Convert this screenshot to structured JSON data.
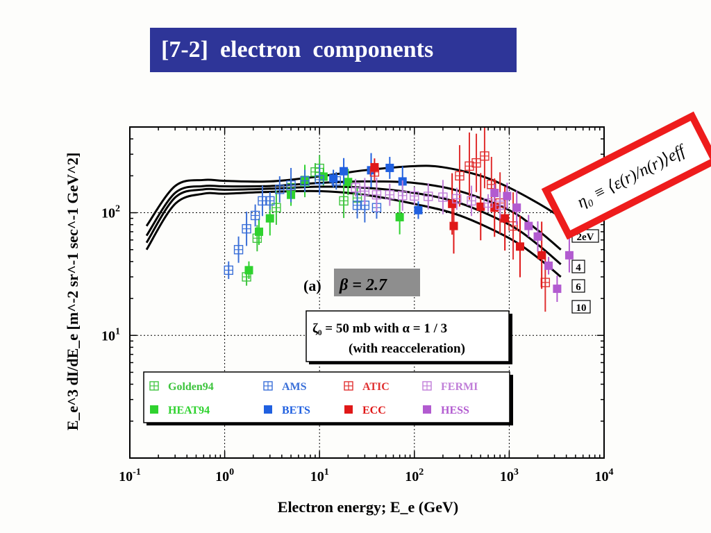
{
  "slide": {
    "title": "[7-2]  electron  components"
  },
  "annotation": {
    "formula_label": "η₀ ≡ ⟨ε(r)/n(r)⟩eff"
  },
  "chart_data": {
    "type": "scatter",
    "title": "",
    "xlabel": "Electron energy;  E_e (GeV)",
    "ylabel": "E_e^3 dI/dE_e [m^-2 sr^-1 sec^-1 GeV^2]",
    "x_scale": "log",
    "y_scale": "log",
    "xlim": [
      0.1,
      10000
    ],
    "ylim": [
      1,
      500
    ],
    "x_ticks": [
      "10-1",
      "100",
      "101",
      "102",
      "103",
      "104"
    ],
    "y_ticks": [
      "101",
      "102"
    ],
    "grid": "dotted at decades",
    "panel_label": "(a)",
    "beta_label": "β  =  2.7",
    "param_box": [
      "ζ₀ = 50 mb  with  α = 1 / 3",
      "(with reacceleration)"
    ],
    "curve_labels": [
      "2eV",
      "4",
      "6",
      "10"
    ],
    "model_curves": [
      {
        "name": "2eV",
        "points": [
          [
            0.15,
            78
          ],
          [
            0.3,
            165
          ],
          [
            0.6,
            185
          ],
          [
            1,
            182
          ],
          [
            3,
            180
          ],
          [
            10,
            198
          ],
          [
            30,
            222
          ],
          [
            100,
            240
          ],
          [
            200,
            235
          ],
          [
            500,
            200
          ],
          [
            1000,
            160
          ],
          [
            2000,
            120
          ],
          [
            3500,
            92
          ]
        ]
      },
      {
        "name": "4",
        "points": [
          [
            0.15,
            65
          ],
          [
            0.3,
            145
          ],
          [
            0.6,
            165
          ],
          [
            1,
            164
          ],
          [
            3,
            165
          ],
          [
            10,
            175
          ],
          [
            30,
            180
          ],
          [
            100,
            175
          ],
          [
            300,
            150
          ],
          [
            1000,
            105
          ],
          [
            2000,
            72
          ],
          [
            3500,
            50
          ]
        ]
      },
      {
        "name": "6",
        "points": [
          [
            0.15,
            57
          ],
          [
            0.3,
            133
          ],
          [
            0.6,
            155
          ],
          [
            1,
            154
          ],
          [
            3,
            157
          ],
          [
            10,
            163
          ],
          [
            30,
            160
          ],
          [
            100,
            145
          ],
          [
            300,
            120
          ],
          [
            1000,
            80
          ],
          [
            2000,
            55
          ],
          [
            3500,
            38
          ]
        ]
      },
      {
        "name": "10",
        "points": [
          [
            0.15,
            50
          ],
          [
            0.3,
            118
          ],
          [
            0.6,
            143
          ],
          [
            1,
            143
          ],
          [
            3,
            148
          ],
          [
            10,
            150
          ],
          [
            30,
            140
          ],
          [
            100,
            118
          ],
          [
            300,
            95
          ],
          [
            1000,
            62
          ],
          [
            2000,
            43
          ],
          [
            3500,
            30
          ]
        ]
      }
    ],
    "series": [
      {
        "name": "Golden94",
        "color": "#3ec43e",
        "marker": "open",
        "points": [
          [
            1.7,
            30
          ],
          [
            2.2,
            62
          ],
          [
            3.5,
            110
          ],
          [
            5,
            160
          ],
          [
            7,
            178
          ],
          [
            9,
            215
          ],
          [
            10,
            230
          ],
          [
            18,
            125
          ],
          [
            25,
            132
          ]
        ]
      },
      {
        "name": "HEAT94",
        "color": "#2fd22f",
        "marker": "filled",
        "points": [
          [
            1.8,
            34
          ],
          [
            2.3,
            70
          ],
          [
            3,
            90
          ],
          [
            5,
            140
          ],
          [
            7,
            185
          ],
          [
            11,
            197
          ],
          [
            20,
            178
          ],
          [
            70,
            92
          ]
        ]
      },
      {
        "name": "AMS",
        "color": "#3a6fd8",
        "marker": "open",
        "points": [
          [
            1.1,
            34
          ],
          [
            1.4,
            50
          ],
          [
            1.7,
            74
          ],
          [
            2.1,
            95
          ],
          [
            2.5,
            125
          ],
          [
            3,
            125
          ],
          [
            3.8,
            155
          ],
          [
            5,
            168
          ],
          [
            7,
            182
          ],
          [
            10,
            186
          ],
          [
            15,
            182
          ],
          [
            25,
            115
          ],
          [
            30,
            115
          ],
          [
            40,
            110
          ]
        ]
      },
      {
        "name": "BETS",
        "color": "#2060e0",
        "marker": "filled",
        "points": [
          [
            14,
            190
          ],
          [
            18,
            218
          ],
          [
            35,
            222
          ],
          [
            55,
            232
          ],
          [
            75,
            180
          ],
          [
            110,
            105
          ]
        ]
      },
      {
        "name": "ATIC",
        "color": "#e03030",
        "marker": "open",
        "points": [
          [
            38,
            215
          ],
          [
            300,
            200
          ],
          [
            380,
            240
          ],
          [
            450,
            255
          ],
          [
            550,
            290
          ],
          [
            650,
            170
          ],
          [
            800,
            120
          ],
          [
            1100,
            78
          ],
          [
            2400,
            27
          ]
        ]
      },
      {
        "name": "ECC",
        "color": "#e01818",
        "marker": "filled",
        "points": [
          [
            38,
            235
          ],
          [
            250,
            118
          ],
          [
            500,
            112
          ],
          [
            700,
            110
          ],
          [
            900,
            90
          ],
          [
            260,
            78
          ],
          [
            1300,
            53
          ],
          [
            2200,
            45
          ]
        ]
      },
      {
        "name": "FERMI",
        "color": "#c07ed8",
        "marker": "open",
        "points": [
          [
            24,
            160
          ],
          [
            30,
            150
          ],
          [
            40,
            140
          ],
          [
            55,
            140
          ],
          [
            75,
            138
          ],
          [
            100,
            137
          ],
          [
            140,
            136
          ],
          [
            200,
            134
          ],
          [
            280,
            130
          ],
          [
            400,
            125
          ],
          [
            600,
            120
          ],
          [
            800,
            115
          ]
        ]
      },
      {
        "name": "HESS",
        "color": "#b25bd0",
        "marker": "filled",
        "points": [
          [
            700,
            145
          ],
          [
            950,
            137
          ],
          [
            1200,
            110
          ],
          [
            1600,
            78
          ],
          [
            2000,
            64
          ],
          [
            2600,
            37
          ],
          [
            3200,
            24
          ],
          [
            4300,
            45
          ]
        ]
      }
    ],
    "legend": [
      "Golden94",
      "AMS",
      "ATIC",
      "FERMI",
      "HEAT94",
      "BETS",
      "ECC",
      "HESS"
    ]
  }
}
